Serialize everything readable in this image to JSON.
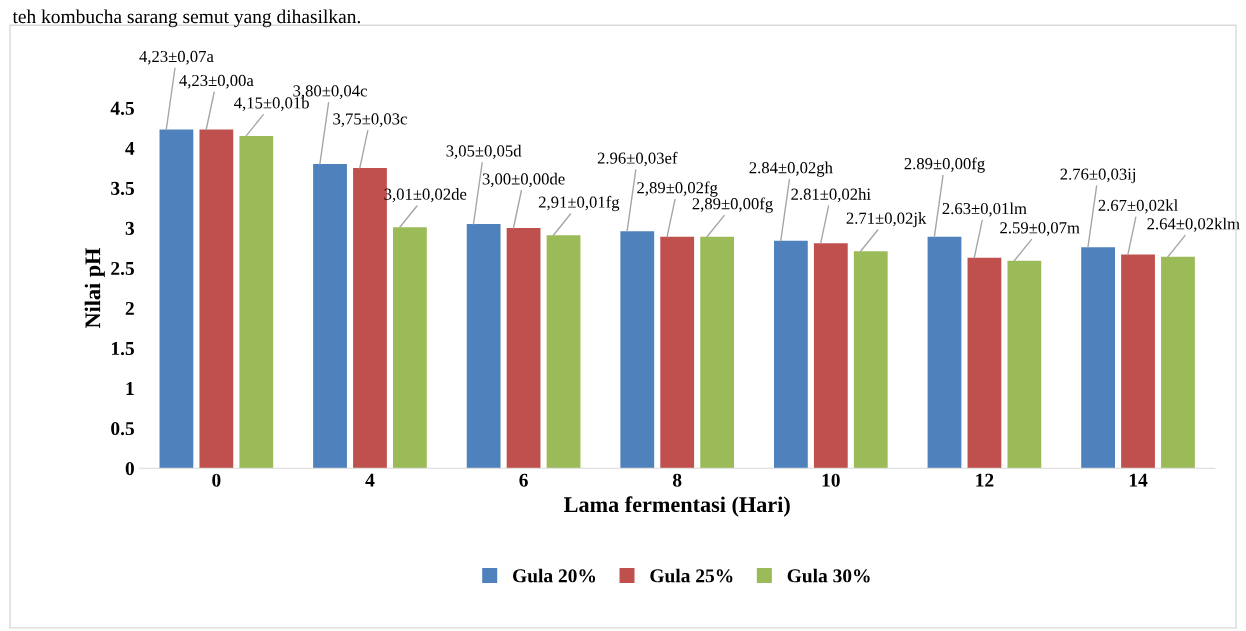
{
  "chart_data": {
    "type": "bar",
    "xlabel": "Lama fermentasi (Hari)",
    "ylabel": "Nilai pH",
    "categories": [
      "0",
      "4",
      "6",
      "8",
      "10",
      "12",
      "14"
    ],
    "series": [
      {
        "name": "Gula 20%",
        "color": "#4f81bd",
        "values": [
          4.23,
          3.8,
          3.05,
          2.96,
          2.84,
          2.89,
          2.76
        ],
        "value_labels": [
          "4,23±0,07a",
          "3,80±0,04c",
          "3,05±0,05d",
          "2.96±0,03ef",
          "2.84±0,02gh",
          "2.89±0,00fg",
          "2.76±0,03ij"
        ]
      },
      {
        "name": "Gula 25%",
        "color": "#c0504d",
        "values": [
          4.23,
          3.75,
          3.0,
          2.89,
          2.81,
          2.63,
          2.67
        ],
        "value_labels": [
          "4,23±0,00a",
          "3,75±0,03c",
          "3,00±0,00de",
          "2,89±0,02fg",
          "2.81±0,02hi",
          "2.63±0,01lm",
          "2.67±0,02kl"
        ]
      },
      {
        "name": "Gula 30%",
        "color": "#9bbb59",
        "values": [
          4.15,
          3.01,
          2.91,
          2.89,
          2.71,
          2.59,
          2.64
        ],
        "value_labels": [
          "4,15±0,01b",
          "3,01±0,02de",
          "2,91±0,01fg",
          "2,89±0,00fg",
          "2.71±0,02jk",
          "2.59±0,07m",
          "2.64±0,02klm"
        ]
      }
    ],
    "ylim": [
      0,
      4.5
    ],
    "yticks": [
      0,
      0.5,
      1,
      1.5,
      2,
      2.5,
      3,
      3.5,
      4,
      4.5
    ],
    "grid": false,
    "legend": "bottom",
    "annotations": [
      "teh kombucha sarang semut yang dihasilkan."
    ]
  }
}
